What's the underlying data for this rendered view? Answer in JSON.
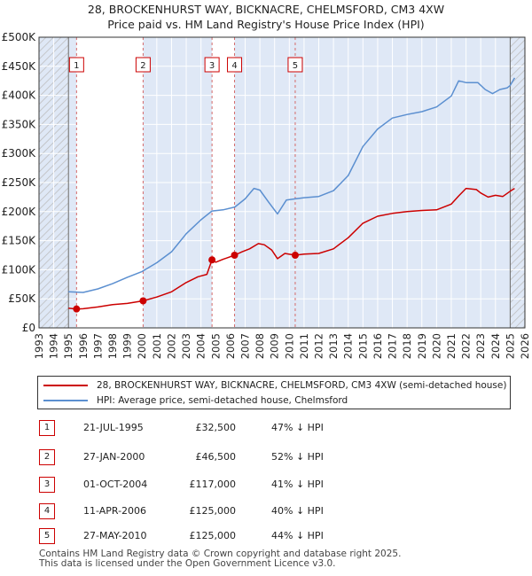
{
  "title_line1": "28, BROCKENHURST WAY, BICKNACRE, CHELMSFORD, CM3 4XW",
  "title_line2": "Price paid vs. HM Land Registry's House Price Index (HPI)",
  "legend": {
    "property": "28, BROCKENHURST WAY, BICKNACRE, CHELMSFORD, CM3 4XW (semi-detached house)",
    "hpi": "HPI: Average price, semi-detached house, Chelmsford"
  },
  "transactions": [
    {
      "num": "1",
      "date": "21-JUL-1995",
      "price": "£32,500",
      "hpi": "47% ↓ HPI"
    },
    {
      "num": "2",
      "date": "27-JAN-2000",
      "price": "£46,500",
      "hpi": "52% ↓ HPI"
    },
    {
      "num": "3",
      "date": "01-OCT-2004",
      "price": "£117,000",
      "hpi": "41% ↓ HPI"
    },
    {
      "num": "4",
      "date": "11-APR-2006",
      "price": "£125,000",
      "hpi": "40% ↓ HPI"
    },
    {
      "num": "5",
      "date": "27-MAY-2010",
      "price": "£125,000",
      "hpi": "44% ↓ HPI"
    }
  ],
  "footer_line1": "Contains HM Land Registry data © Crown copyright and database right 2025.",
  "footer_line2": "This data is licensed under the Open Government Licence v3.0.",
  "colors": {
    "property": "#cc0000",
    "hpi": "#5b8fd0",
    "shade": "#dfe8f6",
    "grid": "#ffffff",
    "hatch": "#bbbbbb"
  },
  "chart_data": {
    "type": "line",
    "xlim": [
      1993,
      2026
    ],
    "ylim": [
      0,
      500000
    ],
    "x_ticks": [
      "1993",
      "1994",
      "1995",
      "1996",
      "1997",
      "1998",
      "1999",
      "2000",
      "2001",
      "2002",
      "2003",
      "2004",
      "2005",
      "2006",
      "2007",
      "2008",
      "2009",
      "2010",
      "2011",
      "2012",
      "2013",
      "2014",
      "2015",
      "2016",
      "2017",
      "2018",
      "2019",
      "2020",
      "2021",
      "2022",
      "2023",
      "2024",
      "2025",
      "2026"
    ],
    "y_ticks": [
      {
        "value": 0,
        "label": "£0"
      },
      {
        "value": 50000,
        "label": "£50K"
      },
      {
        "value": 100000,
        "label": "£100K"
      },
      {
        "value": 150000,
        "label": "£150K"
      },
      {
        "value": 200000,
        "label": "£200K"
      },
      {
        "value": 250000,
        "label": "£250K"
      },
      {
        "value": 300000,
        "label": "£300K"
      },
      {
        "value": 350000,
        "label": "£350K"
      },
      {
        "value": 400000,
        "label": "£400K"
      },
      {
        "value": 450000,
        "label": "£450K"
      },
      {
        "value": 500000,
        "label": "£500K"
      }
    ],
    "hatched_ranges": [
      [
        1993,
        1995.0
      ],
      [
        2025.0,
        2026
      ]
    ],
    "shaded_ranges": [
      [
        1995.55,
        2000.07
      ],
      [
        2004.75,
        2006.28
      ]
    ],
    "markers": [
      {
        "label": "1",
        "x": 1995.55,
        "y": 32500
      },
      {
        "label": "2",
        "x": 2000.07,
        "y": 46500
      },
      {
        "label": "3",
        "x": 2004.75,
        "y": 117000
      },
      {
        "label": "4",
        "x": 2006.28,
        "y": 125000
      },
      {
        "label": "5",
        "x": 2010.4,
        "y": 125000
      }
    ],
    "series": [
      {
        "name": "28, BROCKENHURST WAY, BICKNACRE, CHELMSFORD, CM3 4XW (semi-detached house)",
        "x": [
          1995.0,
          1995.55,
          1996.0,
          1997.0,
          1998.0,
          1999.0,
          2000.07,
          2001.0,
          2002.0,
          2003.0,
          2003.8,
          2004.4,
          2004.75,
          2005.0,
          2005.5,
          2006.28,
          2006.8,
          2007.3,
          2007.9,
          2008.3,
          2008.8,
          2009.2,
          2009.7,
          2010.4,
          2011.0,
          2012.0,
          2013.0,
          2014.0,
          2015.0,
          2016.0,
          2017.0,
          2018.0,
          2019.0,
          2020.0,
          2021.0,
          2021.5,
          2022.0,
          2022.7,
          2023.0,
          2023.5,
          2024.0,
          2024.5,
          2025.0,
          2025.3
        ],
        "y": [
          34000,
          32500,
          33000,
          36000,
          40000,
          42000,
          46500,
          53000,
          62000,
          78000,
          88000,
          92000,
          117000,
          113000,
          118000,
          125000,
          131000,
          136000,
          145000,
          143000,
          134000,
          119000,
          128000,
          125000,
          127000,
          128000,
          136000,
          155000,
          180000,
          192000,
          197000,
          200000,
          202000,
          203000,
          213000,
          227000,
          240000,
          238000,
          232000,
          225000,
          228000,
          226000,
          235000,
          240000
        ]
      },
      {
        "name": "HPI: Average price, semi-detached house, Chelmsford",
        "x": [
          1995.0,
          1996.0,
          1997.0,
          1998.0,
          1999.0,
          2000.0,
          2001.0,
          2002.0,
          2003.0,
          2004.0,
          2004.75,
          2005.5,
          2006.3,
          2007.0,
          2007.6,
          2008.0,
          2008.6,
          2009.2,
          2009.8,
          2010.4,
          2011.0,
          2012.0,
          2013.0,
          2014.0,
          2015.0,
          2016.0,
          2017.0,
          2018.0,
          2019.0,
          2020.0,
          2021.0,
          2021.5,
          2022.0,
          2022.8,
          2023.3,
          2023.8,
          2024.3,
          2024.8,
          2025.0,
          2025.3
        ],
        "y": [
          62000,
          61000,
          67000,
          76000,
          87000,
          97000,
          112000,
          131000,
          162000,
          186000,
          201000,
          203000,
          208000,
          222000,
          240000,
          237000,
          216000,
          196000,
          220000,
          222000,
          224000,
          226000,
          236000,
          262000,
          312000,
          342000,
          361000,
          367000,
          372000,
          380000,
          399000,
          425000,
          422000,
          422000,
          410000,
          403000,
          410000,
          413000,
          417000,
          430000
        ]
      }
    ]
  }
}
